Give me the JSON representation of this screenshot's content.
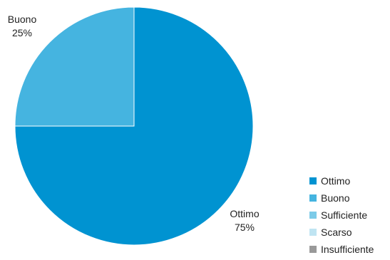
{
  "chart_data": {
    "type": "pie",
    "categories": [
      "Ottimo",
      "Buono",
      "Sufficiente",
      "Scarso",
      "Insufficiente"
    ],
    "values": [
      75,
      25,
      0,
      0,
      0
    ],
    "value_labels": [
      "75%",
      "25%",
      "",
      "",
      ""
    ],
    "colors": [
      "#0093d1",
      "#45b4e0",
      "#7ccbe8",
      "#bfe4f2",
      "#999999"
    ],
    "legend_placement": "bottom-right",
    "start_angle_deg": 0,
    "direction": "clockwise"
  }
}
